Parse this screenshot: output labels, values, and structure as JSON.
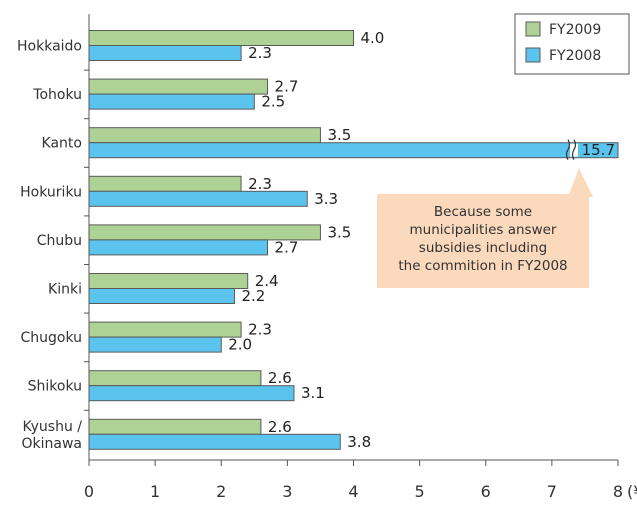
{
  "chart_data": {
    "type": "bar",
    "orientation": "horizontal",
    "categories": [
      "Hokkaido",
      "Tohoku",
      "Kanto",
      "Hokuriku",
      "Chubu",
      "Kinki",
      "Chugoku",
      "Shikoku",
      "Kyushu / Okinawa"
    ],
    "category_lines": [
      [
        "Hokkaido"
      ],
      [
        "Tohoku"
      ],
      [
        "Kanto"
      ],
      [
        "Hokuriku"
      ],
      [
        "Chubu"
      ],
      [
        "Kinki"
      ],
      [
        "Chugoku"
      ],
      [
        "Shikoku"
      ],
      [
        "Kyushu /",
        "Okinawa"
      ]
    ],
    "series": [
      {
        "name": "FY2009",
        "color": "#aed296",
        "values": [
          4.0,
          2.7,
          3.5,
          2.3,
          3.5,
          2.4,
          2.3,
          2.6,
          2.6
        ]
      },
      {
        "name": "FY2008",
        "color": "#5bc4ee",
        "values": [
          2.3,
          2.5,
          15.7,
          3.3,
          2.7,
          2.2,
          2.0,
          3.1,
          3.8
        ]
      }
    ],
    "value_labels": {
      "FY2009": [
        "4.0",
        "2.7",
        "3.5",
        "2.3",
        "3.5",
        "2.4",
        "2.3",
        "2.6",
        "2.6"
      ],
      "FY2008": [
        "2.3",
        "2.5",
        "15.7",
        "3.3",
        "2.7",
        "2.2",
        "2.0",
        "3.1",
        "3.8"
      ]
    },
    "xlim": [
      0,
      8
    ],
    "x_ticks": [
      "0",
      "1",
      "2",
      "3",
      "4",
      "5",
      "6",
      "7",
      "8"
    ],
    "x_unit": "(¥)",
    "axis_break": {
      "series": "FY2008",
      "category": "Kanto",
      "marker": "≈"
    },
    "legend": {
      "position": "top-right",
      "entries": [
        "FY2009",
        "FY2008"
      ]
    },
    "annotation": {
      "lines": [
        "Because some",
        "municipalities answer",
        "subsidies including",
        "the commition in FY2008"
      ],
      "color": "#fbd9bd",
      "points_to": "Kanto FY2008"
    },
    "grid": false
  }
}
